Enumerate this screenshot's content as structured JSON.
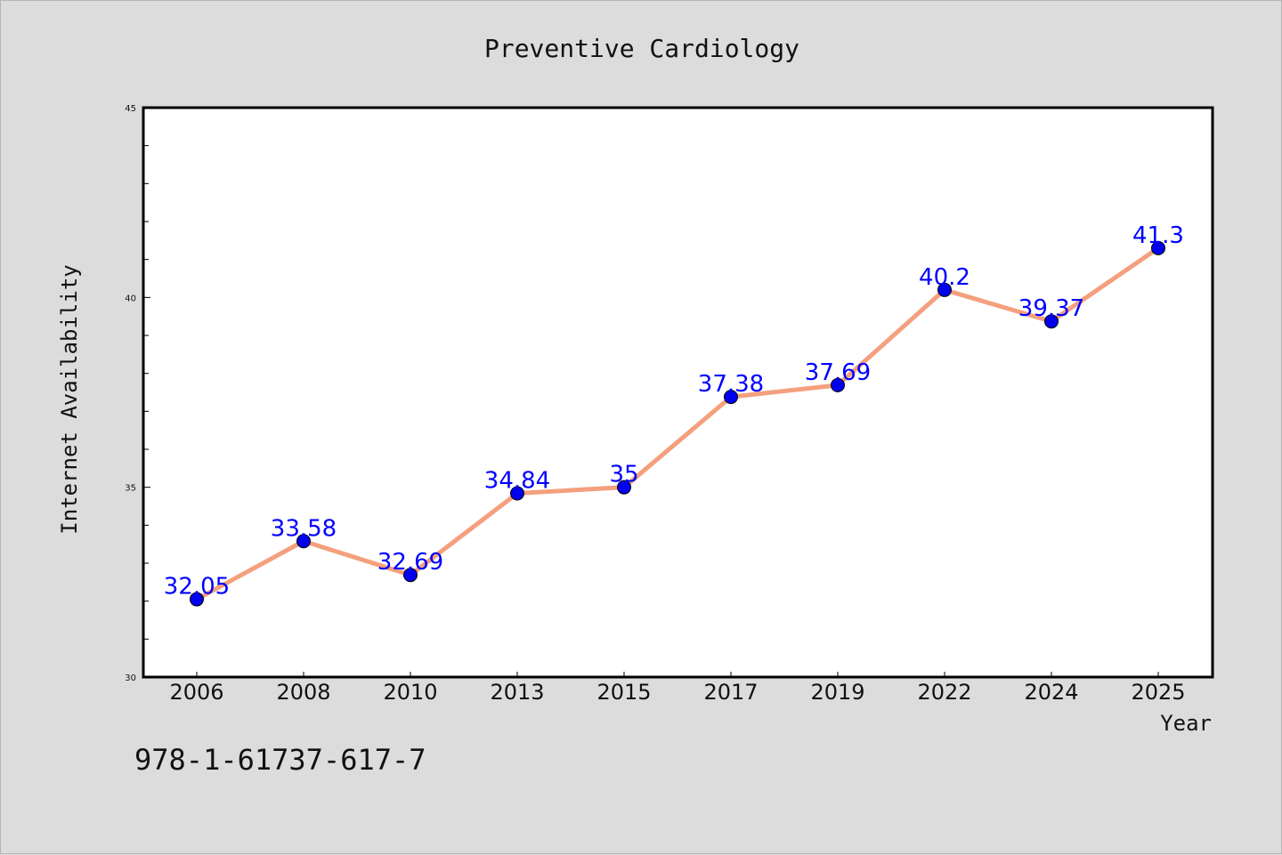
{
  "chart_data": {
    "type": "line",
    "title": "Preventive Cardiology",
    "xlabel": "Year",
    "ylabel": "Internet Availability",
    "categories": [
      "2006",
      "2008",
      "2010",
      "2013",
      "2015",
      "2017",
      "2019",
      "2022",
      "2024",
      "2025"
    ],
    "series": [
      {
        "values": [
          32.05,
          33.58,
          32.69,
          34.84,
          35,
          37.38,
          37.69,
          40.2,
          39.37,
          41.3
        ],
        "data_labels": [
          "32.05",
          "33.58",
          "32.69",
          "34.84",
          "35",
          "37.38",
          "37.69",
          "40.2",
          "39.37",
          "41.3"
        ],
        "line_color": "#f4a07e",
        "marker_color": "#0000ee"
      }
    ],
    "ylim": [
      30,
      45
    ],
    "yticks": [
      "30",
      "35",
      "40",
      "45"
    ],
    "grid": false,
    "legend": "none"
  },
  "footer_text": "978-1-61737-617-7",
  "colors": {
    "background": "#dcdcdc",
    "plot_area": "#ffffff",
    "label_color": "#0000ff"
  }
}
